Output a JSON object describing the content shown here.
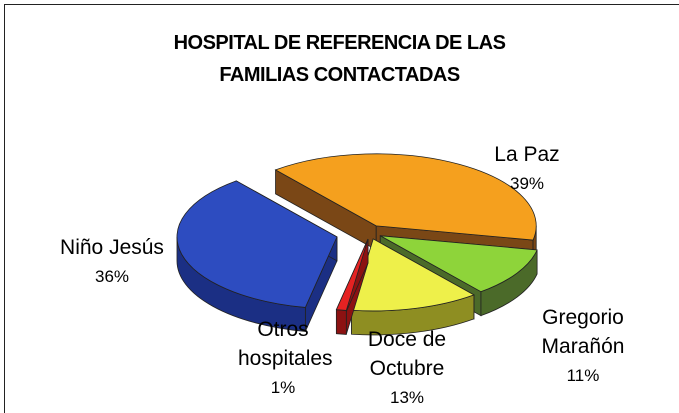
{
  "chart_data": {
    "type": "pie3d",
    "title": [
      "HOSPITAL DE REFERENCIA DE LAS",
      "FAMILIAS CONTACTADAS"
    ],
    "categories": [
      "La Paz",
      "Gregorio Marañón",
      "Doce de Octubre",
      "Otros hospitales",
      "Niño Jesús"
    ],
    "values": [
      39,
      11,
      13,
      1,
      36
    ],
    "value_labels": [
      "39%",
      "11%",
      "13%",
      "1%",
      "36%"
    ],
    "colors": [
      "#f5a01e",
      "#8ed43a",
      "#eef04a",
      "#e52222",
      "#2d4cc0"
    ],
    "side_colors": [
      "#7a4716",
      "#4b6a29",
      "#8e8e22",
      "#8c1212",
      "#1b2f84"
    ]
  }
}
